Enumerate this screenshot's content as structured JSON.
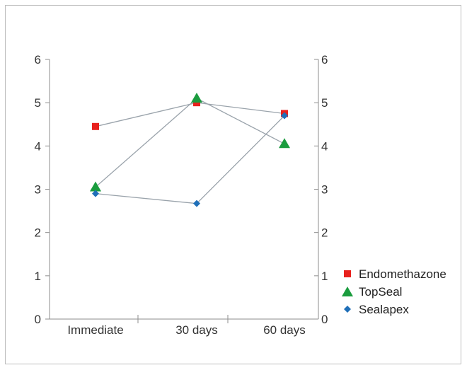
{
  "chart_data": {
    "type": "line",
    "categories": [
      "Immediate",
      "30 days",
      "60 days"
    ],
    "series": [
      {
        "name": "Endomethazone",
        "values": [
          4.45,
          5.0,
          4.75
        ],
        "color": "#e8211d",
        "marker": "square"
      },
      {
        "name": "TopSeal",
        "values": [
          3.05,
          5.1,
          4.05
        ],
        "color": "#1a9c3e",
        "marker": "triangle"
      },
      {
        "name": "Sealapex",
        "values": [
          2.9,
          2.67,
          4.7
        ],
        "color": "#1f6fb8",
        "marker": "diamond"
      }
    ],
    "line_color": "#9aa3ab",
    "ylim": [
      0,
      6
    ],
    "yticks": [
      "0",
      "1",
      "2",
      "3",
      "4",
      "5",
      "6"
    ],
    "y2ticks": [
      "0",
      "1",
      "2",
      "3",
      "4",
      "5",
      "6"
    ],
    "title": "",
    "xlabel": "",
    "ylabel": "",
    "legend_position": "right"
  }
}
